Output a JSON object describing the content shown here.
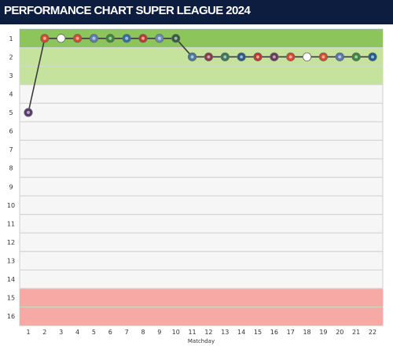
{
  "title": "PERFORMANCE CHART SUPER LEAGUE 2024",
  "colors": {
    "title_bar": "#0c1d3f",
    "zone_top": "#8cc65a",
    "zone_upper": "#c5e39d",
    "zone_bottom": "#f7a9a6",
    "line": "#3b3b3b",
    "grid": "#d4d4d4"
  },
  "chart_data": {
    "type": "line",
    "xlabel": "Matchday",
    "ylabel": "",
    "x": [
      1,
      2,
      3,
      4,
      5,
      6,
      7,
      8,
      9,
      10,
      11,
      12,
      13,
      14,
      15,
      16,
      17,
      18,
      19,
      20,
      21,
      22
    ],
    "y": [
      5,
      1,
      1,
      1,
      1,
      1,
      1,
      1,
      1,
      1,
      2,
      2,
      2,
      2,
      2,
      2,
      2,
      2,
      2,
      2,
      2,
      2
    ],
    "yticks": [
      1,
      2,
      3,
      4,
      5,
      6,
      7,
      8,
      9,
      10,
      11,
      12,
      13,
      14,
      15,
      16
    ],
    "ylim": [
      1,
      16
    ],
    "y_inverted": true,
    "xlim": [
      1,
      22
    ],
    "grid": true,
    "zones": [
      {
        "from": 1,
        "to": 1,
        "color": "#8cc65a"
      },
      {
        "from": 2,
        "to": 3,
        "color": "#c5e39d"
      },
      {
        "from": 15,
        "to": 16,
        "color": "#f7a9a6"
      }
    ],
    "marker_colors": [
      "#5a3a6e",
      "#d94a2b",
      "#ffffff",
      "#d94a2b",
      "#5b7fb6",
      "#3a8a3a",
      "#2f6fa8",
      "#c0392b",
      "#6a8fbf",
      "#2e5e3a",
      "#4a7a9a",
      "#8a3a4a",
      "#3a7a5a",
      "#2a5a8a",
      "#c0392b",
      "#6a3a5a",
      "#d94a2b",
      "#ffffff",
      "#d94a2b",
      "#5a7ab0",
      "#3a8a3a",
      "#1f5f8f"
    ]
  }
}
